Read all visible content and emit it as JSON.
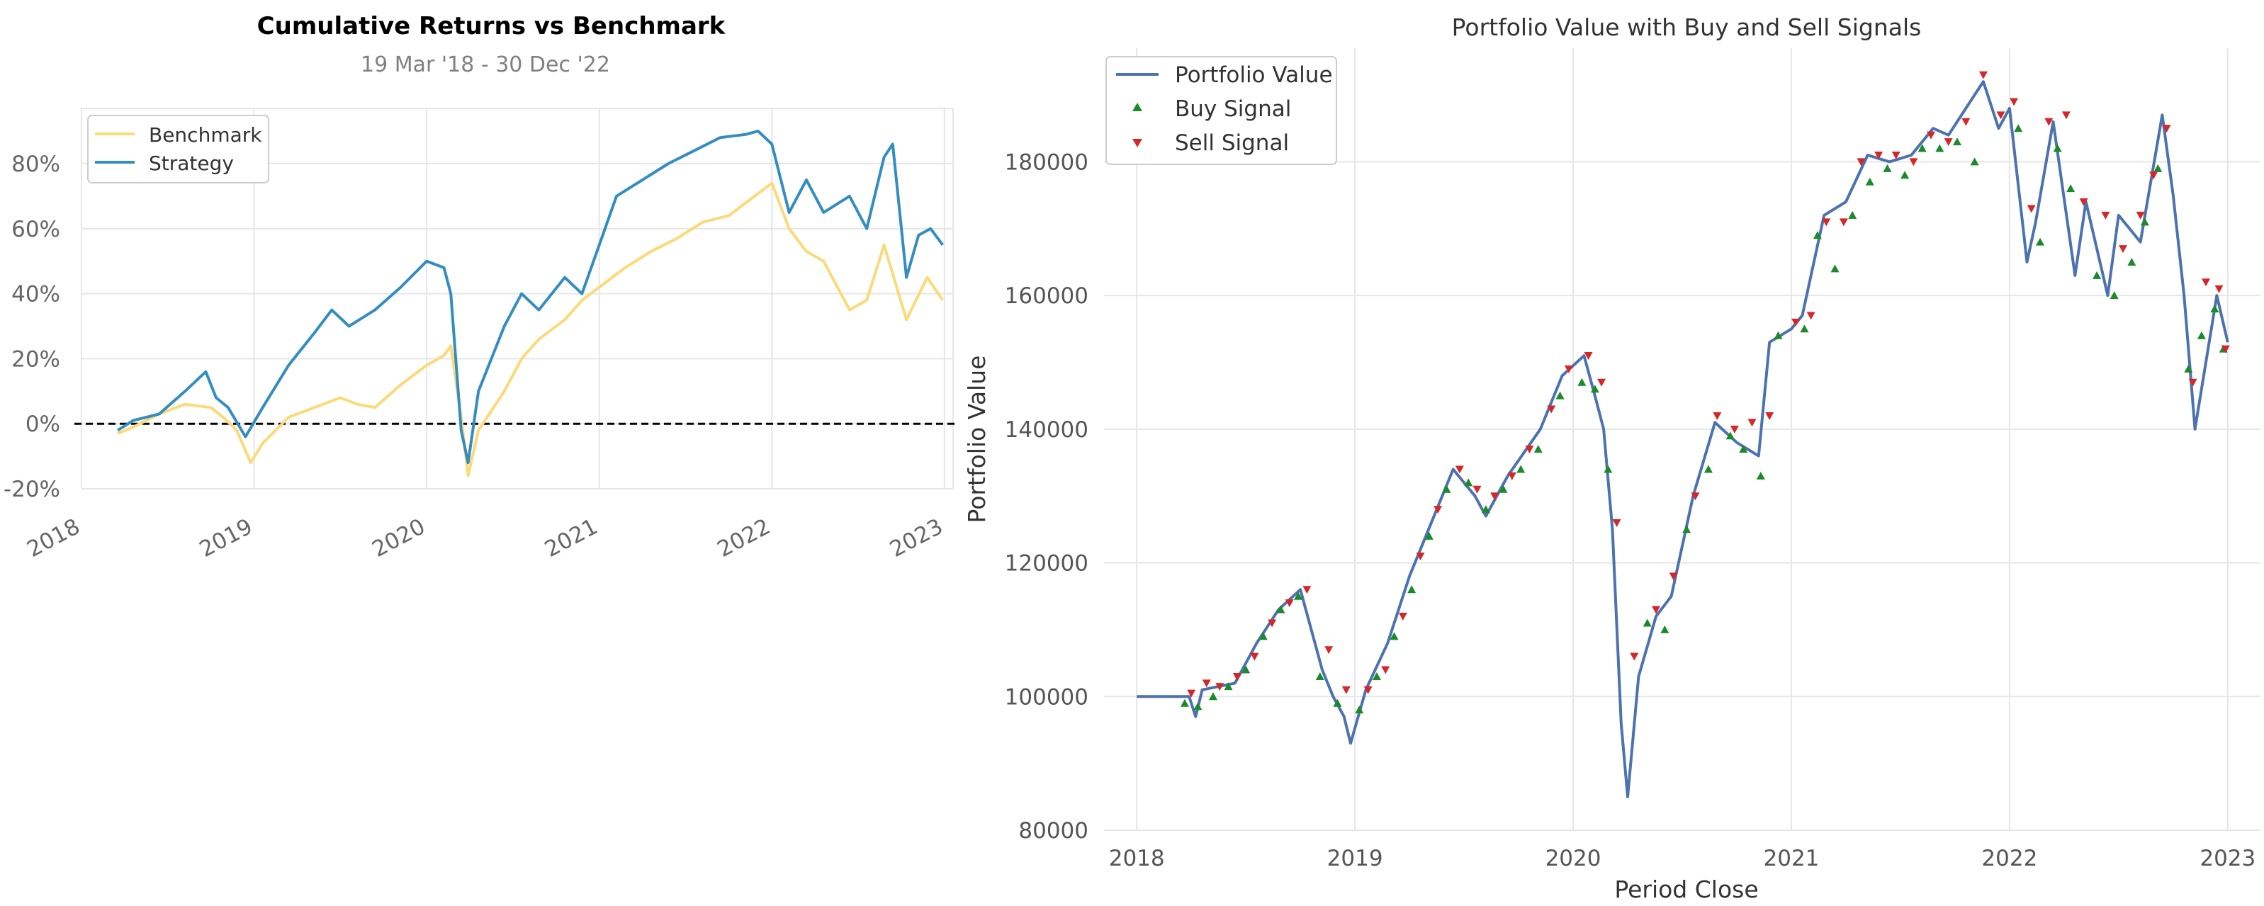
{
  "chart_data": [
    {
      "type": "line",
      "title": "Cumulative Returns vs Benchmark",
      "subtitle": "19 Mar '18 - 30 Dec '22",
      "xlabel": "",
      "ylabel": "",
      "x_ticks": [
        "2018",
        "2019",
        "2020",
        "2021",
        "2022",
        "2023"
      ],
      "y_ticks": [
        "-20%",
        "0%",
        "20%",
        "40%",
        "60%",
        "80%"
      ],
      "xlim": [
        2018.0,
        2023.05
      ],
      "ylim": [
        -0.2,
        0.97
      ],
      "zero_line": 0,
      "grid": true,
      "legend_position": "top-left",
      "series": [
        {
          "name": "Benchmark",
          "color": "#fbda79",
          "x": [
            2018.21,
            2018.3,
            2018.45,
            2018.6,
            2018.75,
            2018.82,
            2018.9,
            2018.98,
            2019.05,
            2019.2,
            2019.35,
            2019.5,
            2019.6,
            2019.7,
            2019.85,
            2020.0,
            2020.1,
            2020.14,
            2020.2,
            2020.24,
            2020.3,
            2020.45,
            2020.55,
            2020.65,
            2020.8,
            2020.9,
            2021.0,
            2021.15,
            2021.3,
            2021.45,
            2021.6,
            2021.75,
            2021.9,
            2022.0,
            2022.1,
            2022.2,
            2022.3,
            2022.45,
            2022.55,
            2022.65,
            2022.78,
            2022.9,
            2022.99
          ],
          "y": [
            -0.03,
            -0.01,
            0.03,
            0.06,
            0.05,
            0.02,
            -0.02,
            -0.12,
            -0.06,
            0.02,
            0.05,
            0.08,
            0.06,
            0.05,
            0.12,
            0.18,
            0.21,
            0.24,
            0.02,
            -0.16,
            -0.02,
            0.1,
            0.2,
            0.26,
            0.32,
            0.38,
            0.42,
            0.48,
            0.53,
            0.57,
            0.62,
            0.64,
            0.7,
            0.74,
            0.6,
            0.53,
            0.5,
            0.35,
            0.38,
            0.55,
            0.32,
            0.45,
            0.38
          ]
        },
        {
          "name": "Strategy",
          "color": "#348dc1",
          "x": [
            2018.21,
            2018.3,
            2018.45,
            2018.6,
            2018.72,
            2018.78,
            2018.85,
            2018.95,
            2019.05,
            2019.2,
            2019.35,
            2019.45,
            2019.55,
            2019.7,
            2019.85,
            2020.0,
            2020.1,
            2020.14,
            2020.2,
            2020.24,
            2020.3,
            2020.45,
            2020.55,
            2020.65,
            2020.8,
            2020.9,
            2021.0,
            2021.1,
            2021.25,
            2021.4,
            2021.55,
            2021.7,
            2021.85,
            2021.92,
            2022.0,
            2022.1,
            2022.2,
            2022.3,
            2022.45,
            2022.55,
            2022.65,
            2022.7,
            2022.78,
            2022.85,
            2022.92,
            2022.99
          ],
          "y": [
            -0.02,
            0.01,
            0.03,
            0.1,
            0.16,
            0.08,
            0.05,
            -0.04,
            0.05,
            0.18,
            0.28,
            0.35,
            0.3,
            0.35,
            0.42,
            0.5,
            0.48,
            0.4,
            -0.02,
            -0.12,
            0.1,
            0.3,
            0.4,
            0.35,
            0.45,
            0.4,
            0.55,
            0.7,
            0.75,
            0.8,
            0.84,
            0.88,
            0.89,
            0.9,
            0.86,
            0.65,
            0.75,
            0.65,
            0.7,
            0.6,
            0.82,
            0.86,
            0.45,
            0.58,
            0.6,
            0.55
          ]
        }
      ]
    },
    {
      "type": "line",
      "title": "Portfolio Value with Buy and Sell Signals",
      "xlabel": "Period Close",
      "ylabel": "Portfolio Value",
      "x_ticks": [
        "2018",
        "2019",
        "2020",
        "2021",
        "2022",
        "2023"
      ],
      "y_ticks": [
        "80000",
        "100000",
        "120000",
        "140000",
        "160000",
        "180000"
      ],
      "xlim": [
        2017.85,
        2023.15
      ],
      "ylim": [
        80000,
        197000
      ],
      "grid": true,
      "legend_position": "top-left",
      "series": [
        {
          "name": "Portfolio Value",
          "color": "#4c72b0",
          "x": [
            2018.0,
            2018.2,
            2018.24,
            2018.27,
            2018.3,
            2018.45,
            2018.55,
            2018.65,
            2018.75,
            2018.8,
            2018.85,
            2018.9,
            2018.95,
            2018.98,
            2019.05,
            2019.15,
            2019.25,
            2019.35,
            2019.45,
            2019.55,
            2019.6,
            2019.7,
            2019.85,
            2019.95,
            2020.05,
            2020.1,
            2020.14,
            2020.18,
            2020.22,
            2020.25,
            2020.3,
            2020.38,
            2020.45,
            2020.55,
            2020.65,
            2020.75,
            2020.85,
            2020.9,
            2021.0,
            2021.05,
            2021.15,
            2021.25,
            2021.35,
            2021.45,
            2021.55,
            2021.65,
            2021.72,
            2021.8,
            2021.88,
            2021.95,
            2022.0,
            2022.08,
            2022.12,
            2022.2,
            2022.3,
            2022.35,
            2022.45,
            2022.5,
            2022.6,
            2022.7,
            2022.75,
            2022.8,
            2022.85,
            2022.9,
            2022.95,
            2023.0
          ],
          "y": [
            100000,
            100000,
            100000,
            97000,
            101000,
            102000,
            108000,
            113000,
            116000,
            110000,
            104000,
            100000,
            97000,
            93000,
            101000,
            108000,
            118000,
            126000,
            134000,
            130000,
            127000,
            133000,
            140000,
            148000,
            151000,
            145000,
            140000,
            125000,
            96000,
            85000,
            103000,
            112000,
            115000,
            130000,
            141000,
            138000,
            136000,
            153000,
            155000,
            157000,
            172000,
            174000,
            181000,
            180000,
            181000,
            185000,
            184000,
            188000,
            192000,
            185000,
            188000,
            165000,
            171000,
            186000,
            163000,
            174000,
            160000,
            172000,
            168000,
            187000,
            175000,
            160000,
            140000,
            150000,
            160000,
            153000
          ]
        },
        {
          "name": "Buy Signal",
          "color": "#1a8a2a",
          "x": [
            2018.22,
            2018.28,
            2018.35,
            2018.42,
            2018.5,
            2018.58,
            2018.66,
            2018.74,
            2018.84,
            2018.92,
            2019.02,
            2019.1,
            2019.18,
            2019.26,
            2019.34,
            2019.42,
            2019.52,
            2019.6,
            2019.68,
            2019.76,
            2019.84,
            2019.94,
            2020.04,
            2020.1,
            2020.16,
            2020.34,
            2020.42,
            2020.52,
            2020.62,
            2020.72,
            2020.78,
            2020.86,
            2020.94,
            2021.06,
            2021.12,
            2021.2,
            2021.28,
            2021.36,
            2021.44,
            2021.52,
            2021.6,
            2021.68,
            2021.76,
            2021.84,
            2022.04,
            2022.14,
            2022.22,
            2022.28,
            2022.4,
            2022.48,
            2022.56,
            2022.62,
            2022.68,
            2022.82,
            2022.88,
            2022.94,
            2022.98
          ],
          "y": [
            99000,
            98500,
            100000,
            101500,
            104000,
            109000,
            113000,
            115000,
            103000,
            99000,
            98000,
            103000,
            109000,
            116000,
            124000,
            131000,
            132000,
            128000,
            131000,
            134000,
            137000,
            145000,
            147000,
            146000,
            134000,
            111000,
            110000,
            125000,
            134000,
            139000,
            137000,
            133000,
            154000,
            155000,
            169000,
            164000,
            172000,
            177000,
            179000,
            178000,
            182000,
            182000,
            183000,
            180000,
            185000,
            168000,
            182000,
            176000,
            163000,
            160000,
            165000,
            171000,
            179000,
            149000,
            154000,
            158000,
            152000
          ]
        },
        {
          "name": "Sell Signal",
          "color": "#d62728",
          "x": [
            2018.25,
            2018.32,
            2018.38,
            2018.46,
            2018.54,
            2018.62,
            2018.7,
            2018.78,
            2018.88,
            2018.96,
            2019.06,
            2019.14,
            2019.22,
            2019.3,
            2019.38,
            2019.48,
            2019.56,
            2019.64,
            2019.72,
            2019.8,
            2019.9,
            2019.98,
            2020.07,
            2020.13,
            2020.2,
            2020.28,
            2020.38,
            2020.46,
            2020.56,
            2020.66,
            2020.74,
            2020.82,
            2020.9,
            2021.02,
            2021.09,
            2021.16,
            2021.24,
            2021.32,
            2021.4,
            2021.48,
            2021.56,
            2021.64,
            2021.72,
            2021.8,
            2021.88,
            2021.96,
            2022.02,
            2022.1,
            2022.18,
            2022.26,
            2022.34,
            2022.44,
            2022.52,
            2022.6,
            2022.66,
            2022.72,
            2022.84,
            2022.9,
            2022.96,
            2022.99
          ],
          "y": [
            100500,
            102000,
            101500,
            103000,
            106000,
            111000,
            114000,
            116000,
            107000,
            101000,
            101000,
            104000,
            112000,
            121000,
            128000,
            134000,
            131000,
            130000,
            133000,
            137000,
            143000,
            149000,
            151000,
            147000,
            126000,
            106000,
            113000,
            118000,
            130000,
            142000,
            140000,
            141000,
            142000,
            156000,
            157000,
            171000,
            171000,
            180000,
            181000,
            181000,
            180000,
            184000,
            183000,
            186000,
            193000,
            187000,
            189000,
            173000,
            186000,
            187000,
            174000,
            172000,
            167000,
            172000,
            178000,
            185000,
            147000,
            162000,
            161000,
            152000
          ]
        }
      ]
    }
  ]
}
